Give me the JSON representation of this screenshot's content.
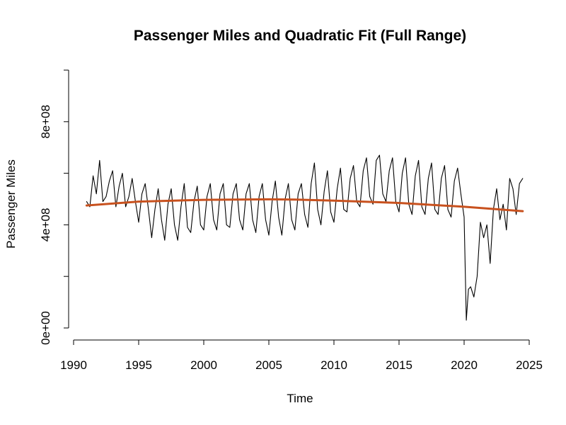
{
  "chart_data": {
    "type": "line",
    "title": "Passenger Miles and Quadratic Fit (Full Range)",
    "xlabel": "Time",
    "ylabel": "Passenger Miles",
    "xlim": [
      1990,
      2025
    ],
    "ylim": [
      0,
      1000000000
    ],
    "x_ticks": [
      1990,
      1995,
      2000,
      2005,
      2010,
      2015,
      2020,
      2025
    ],
    "x_tick_labels": [
      "1990",
      "1995",
      "2000",
      "2005",
      "2010",
      "2015",
      "2020",
      "2025"
    ],
    "y_ticks": [
      0,
      200000000,
      400000000,
      600000000,
      800000000,
      1000000000
    ],
    "y_tick_labels": [
      "0e+00",
      "",
      "4e+08",
      "",
      "8e+08",
      ""
    ],
    "grid": false,
    "series": [
      {
        "color": "#000000",
        "x": [
          1991.0,
          1991.25,
          1991.5,
          1991.75,
          1992.0,
          1992.25,
          1992.5,
          1992.75,
          1993.0,
          1993.25,
          1993.5,
          1993.75,
          1994.0,
          1994.25,
          1994.5,
          1994.75,
          1995.0,
          1995.25,
          1995.5,
          1995.75,
          1996.0,
          1996.25,
          1996.5,
          1996.75,
          1997.0,
          1997.25,
          1997.5,
          1997.75,
          1998.0,
          1998.25,
          1998.5,
          1998.75,
          1999.0,
          1999.25,
          1999.5,
          1999.75,
          2000.0,
          2000.25,
          2000.5,
          2000.75,
          2001.0,
          2001.25,
          2001.5,
          2001.75,
          2002.0,
          2002.25,
          2002.5,
          2002.75,
          2003.0,
          2003.25,
          2003.5,
          2003.75,
          2004.0,
          2004.25,
          2004.5,
          2004.75,
          2005.0,
          2005.25,
          2005.5,
          2005.75,
          2006.0,
          2006.25,
          2006.5,
          2006.75,
          2007.0,
          2007.25,
          2007.5,
          2007.75,
          2008.0,
          2008.25,
          2008.5,
          2008.75,
          2009.0,
          2009.25,
          2009.5,
          2009.75,
          2010.0,
          2010.25,
          2010.5,
          2010.75,
          2011.0,
          2011.25,
          2011.5,
          2011.75,
          2012.0,
          2012.25,
          2012.5,
          2012.75,
          2013.0,
          2013.25,
          2013.5,
          2013.75,
          2014.0,
          2014.25,
          2014.5,
          2014.75,
          2015.0,
          2015.25,
          2015.5,
          2015.75,
          2016.0,
          2016.25,
          2016.5,
          2016.75,
          2017.0,
          2017.25,
          2017.5,
          2017.75,
          2018.0,
          2018.25,
          2018.5,
          2018.75,
          2019.0,
          2019.25,
          2019.5,
          2019.75,
          2020.0,
          2020.17,
          2020.33,
          2020.5,
          2020.75,
          2021.0,
          2021.25,
          2021.5,
          2021.75,
          2022.0,
          2022.25,
          2022.5,
          2022.75,
          2023.0,
          2023.25,
          2023.5,
          2023.75,
          2024.0,
          2024.25,
          2024.5
        ],
        "values": [
          490000000,
          470000000,
          590000000,
          520000000,
          650000000,
          490000000,
          510000000,
          570000000,
          610000000,
          470000000,
          550000000,
          600000000,
          470000000,
          510000000,
          580000000,
          490000000,
          410000000,
          520000000,
          560000000,
          460000000,
          350000000,
          460000000,
          540000000,
          420000000,
          340000000,
          480000000,
          540000000,
          400000000,
          340000000,
          470000000,
          560000000,
          390000000,
          370000000,
          490000000,
          550000000,
          400000000,
          380000000,
          510000000,
          560000000,
          420000000,
          380000000,
          520000000,
          560000000,
          400000000,
          390000000,
          520000000,
          560000000,
          420000000,
          380000000,
          520000000,
          560000000,
          420000000,
          370000000,
          510000000,
          560000000,
          420000000,
          360000000,
          490000000,
          570000000,
          430000000,
          360000000,
          500000000,
          560000000,
          420000000,
          380000000,
          520000000,
          560000000,
          440000000,
          390000000,
          560000000,
          640000000,
          460000000,
          400000000,
          530000000,
          610000000,
          450000000,
          410000000,
          540000000,
          620000000,
          460000000,
          450000000,
          580000000,
          630000000,
          490000000,
          470000000,
          610000000,
          660000000,
          510000000,
          480000000,
          650000000,
          670000000,
          520000000,
          490000000,
          610000000,
          660000000,
          490000000,
          450000000,
          600000000,
          660000000,
          480000000,
          440000000,
          590000000,
          650000000,
          470000000,
          440000000,
          580000000,
          640000000,
          460000000,
          440000000,
          580000000,
          630000000,
          460000000,
          430000000,
          570000000,
          620000000,
          520000000,
          430000000,
          30000000,
          150000000,
          160000000,
          120000000,
          200000000,
          410000000,
          350000000,
          400000000,
          250000000,
          460000000,
          540000000,
          420000000,
          480000000,
          380000000,
          580000000,
          540000000,
          440000000,
          560000000,
          580000000
        ]
      },
      {
        "color": "#c8511e",
        "x": [
          1991,
          1995,
          2000,
          2005,
          2007,
          2010,
          2015,
          2020,
          2024.5
        ],
        "values": [
          475000000,
          490000000,
          497000000,
          499000000,
          498000000,
          494000000,
          485000000,
          470000000,
          453000000
        ]
      }
    ]
  }
}
